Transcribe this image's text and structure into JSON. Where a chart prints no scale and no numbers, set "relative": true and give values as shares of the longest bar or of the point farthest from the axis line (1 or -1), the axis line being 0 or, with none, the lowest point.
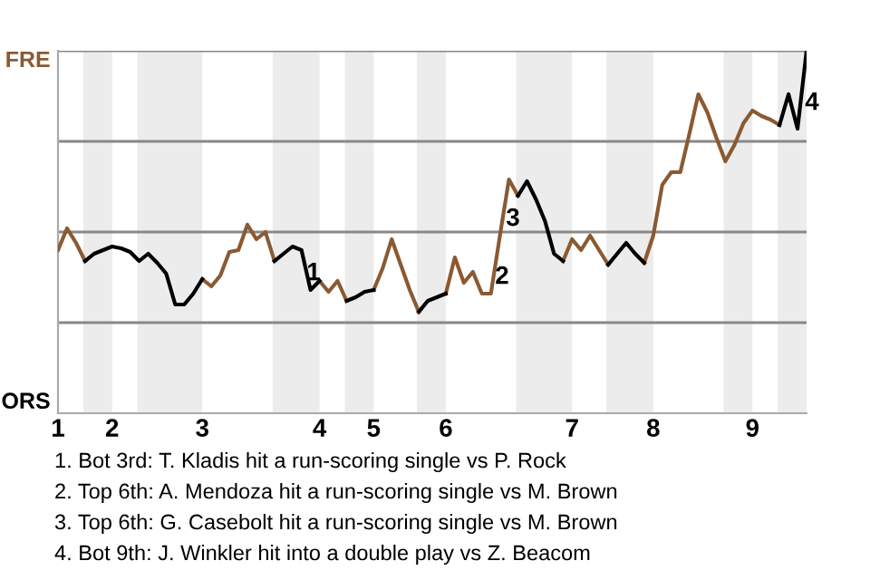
{
  "chart_data": {
    "type": "line",
    "relative": true,
    "categories": [
      "1",
      null,
      null,
      null,
      null,
      null,
      "2",
      null,
      null,
      null,
      null,
      null,
      null,
      null,
      null,
      null,
      "3",
      null,
      null,
      null,
      null,
      null,
      null,
      null,
      null,
      null,
      null,
      null,
      null,
      "4",
      null,
      null,
      null,
      null,
      null,
      "5",
      null,
      null,
      null,
      null,
      null,
      null,
      null,
      "6",
      null,
      null,
      null,
      null,
      null,
      null,
      null,
      null,
      null,
      null,
      null,
      null,
      null,
      "7",
      null,
      null,
      null,
      null,
      null,
      null,
      null,
      null,
      "8",
      null,
      null,
      null,
      null,
      null,
      null,
      null,
      null,
      null,
      null,
      "9",
      null,
      null,
      null,
      null,
      null,
      null
    ],
    "line_style": "solid",
    "series": [
      {
        "color": "#8a5a33",
        "values": [
          0.45,
          0.51,
          0.47,
          0.42,
          null,
          null,
          null,
          null,
          null,
          null,
          null,
          null,
          null,
          null,
          null,
          null,
          0.37,
          0.35,
          0.38,
          0.445,
          0.45,
          0.52,
          0.48,
          0.5,
          0.42,
          null,
          null,
          null,
          null,
          0.365,
          0.335,
          0.365,
          0.31,
          null,
          null,
          0.34,
          0.4,
          0.48,
          0.41,
          0.34,
          0.28,
          null,
          null,
          0.33,
          0.43,
          0.36,
          0.39,
          0.33,
          0.33,
          0.49,
          0.645,
          0.6,
          null,
          null,
          null,
          null,
          0.42,
          0.48,
          0.45,
          0.49,
          0.45,
          0.41,
          null,
          null,
          null,
          0.415,
          0.49,
          0.63,
          0.665,
          0.665,
          0.77,
          0.88,
          0.83,
          0.76,
          0.695,
          0.74,
          0.8,
          0.835,
          0.82,
          0.81,
          0.795,
          null,
          null,
          null
        ]
      },
      {
        "color": "#000000",
        "values": [
          null,
          null,
          null,
          0.42,
          0.44,
          0.45,
          0.46,
          0.455,
          0.445,
          0.42,
          0.44,
          0.415,
          0.385,
          0.3,
          0.3,
          0.33,
          0.37,
          null,
          null,
          null,
          null,
          null,
          null,
          null,
          0.42,
          0.44,
          0.46,
          0.45,
          0.34,
          0.365,
          null,
          null,
          0.31,
          0.32,
          0.335,
          0.34,
          null,
          null,
          null,
          null,
          0.28,
          0.31,
          0.32,
          0.33,
          null,
          null,
          null,
          null,
          null,
          null,
          null,
          0.6,
          0.64,
          0.59,
          0.53,
          0.44,
          0.42,
          null,
          null,
          null,
          null,
          0.41,
          0.44,
          0.47,
          0.44,
          0.415,
          null,
          null,
          null,
          null,
          null,
          null,
          null,
          null,
          null,
          null,
          null,
          null,
          null,
          null,
          0.795,
          0.88,
          0.785,
          1.0
        ]
      }
    ],
    "ref_lines": [
      {
        "axis": "y",
        "value": 0.25,
        "color": "#888888"
      },
      {
        "axis": "y",
        "value": 0.5,
        "color": "#888888"
      },
      {
        "axis": "y",
        "value": 0.75,
        "color": "#888888"
      },
      {
        "axis": "y",
        "value": 1.0,
        "color": "#888888"
      }
    ],
    "annotations": [
      "FRE",
      "ORS",
      "1",
      "2",
      "3",
      "4",
      "1. Bot 3rd: T. Kladis hit a run-scoring single vs P. Rock",
      "2. Top 6th: A. Mendoza hit a run-scoring single vs M. Brown",
      "3. Top 6th: G. Casebolt hit a run-scoring single vs M. Brown",
      "4. Bot 9th: J. Winkler hit into a double play vs Z. Beacom"
    ]
  }
}
